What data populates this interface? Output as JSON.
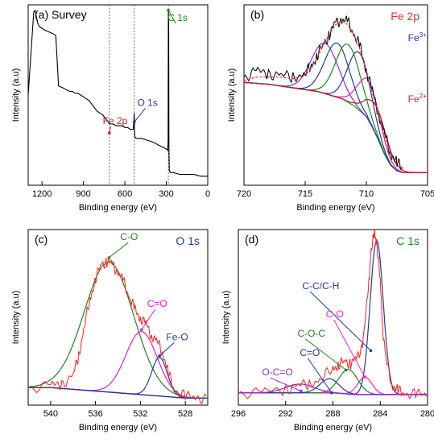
{
  "figure": {
    "panels": [
      {
        "label": "(a) Survey",
        "xlabel": "Binding energy (eV)",
        "ylabel": "Intensity (a.u)",
        "annotations": [
          {
            "text": "C 1s",
            "color": "#1a8a1a",
            "x": 290,
            "y": 0.91,
            "arrow_to": [
              285,
              0.97
            ]
          },
          {
            "text": "O 1s",
            "color": "#1f3d99",
            "x": 510,
            "y": 0.44,
            "arrow_to": [
              532,
              0.35
            ]
          },
          {
            "text": "Fe 2p",
            "color": "#cc2222",
            "x": 760,
            "y": 0.34,
            "arrow_to": [
              712,
              0.29
            ]
          }
        ]
      },
      {
        "label": "(b)",
        "title": "Fe 2p",
        "title_color": "#e0342f",
        "xlabel": "Binding energy (eV)",
        "ylabel": "Intensity (a.u)",
        "annotations": [
          {
            "text": "Fe",
            "sup": "3+",
            "color": "#1f3d99",
            "x": 706.6,
            "y": 0.8
          },
          {
            "text": "Fe",
            "sup": "2+",
            "color": "#cc2222",
            "x": 706.6,
            "y": 0.46
          }
        ]
      },
      {
        "label": "(c)",
        "title": "O 1s",
        "title_color": "#1f3d99",
        "xlabel": "Binding energy (eV)",
        "ylabel": "Intensity (a.u)",
        "annotations": [
          {
            "text": "C-O",
            "color": "#1a8a1a",
            "x": 533.8,
            "y": 0.94,
            "arrow_to": [
              534.8,
              0.84
            ]
          },
          {
            "text": "C=O",
            "color": "#e020c8",
            "x": 531.4,
            "y": 0.56,
            "arrow_to": [
              531.9,
              0.43
            ]
          },
          {
            "text": "Fe-O",
            "color": "#1f3d99",
            "x": 529.7,
            "y": 0.37,
            "arrow_to": [
              530.3,
              0.28
            ]
          }
        ]
      },
      {
        "label": "(d)",
        "title": "C 1s",
        "title_color": "#1a8a1a",
        "xlabel": "Binding energy (eV)",
        "ylabel": "Intensity (a.u)",
        "annotations": [
          {
            "text": "C-C/C-H",
            "color": "#1f3d99",
            "x": 290.6,
            "y": 0.66,
            "arrow_to": [
              284.8,
              0.31
            ]
          },
          {
            "text": "C-O",
            "color": "#ff22dd",
            "x": 288.6,
            "y": 0.5,
            "arrow_to": [
              285.3,
              0.16
            ]
          },
          {
            "text": "C-O-C",
            "color": "#1a8a1a",
            "x": 291.0,
            "y": 0.39,
            "arrow_to": [
              286.9,
              0.2
            ]
          },
          {
            "text": "C=O",
            "color": "#1f3d99",
            "x": 290.8,
            "y": 0.28,
            "arrow_to": [
              288.1,
              0.07
            ]
          },
          {
            "text": "O-C=O",
            "color": "#8a2ad6",
            "x": 294.0,
            "y": 0.17,
            "arrow_to": [
              290.7,
              0.08
            ]
          }
        ]
      }
    ]
  },
  "chart_data": [
    {
      "type": "line",
      "title": "(a) Survey",
      "xlabel": "Binding energy (eV)",
      "ylabel": "Intensity (a.u)",
      "xlim": [
        1300,
        0
      ],
      "ylim": [
        0,
        1
      ],
      "xticks": [
        1200,
        900,
        600,
        300,
        0
      ],
      "dashed_vlines": [
        712,
        532,
        285
      ],
      "series": [
        {
          "color": "#000000",
          "x": [
            1300,
            1260,
            1250,
            1240,
            1232,
            1220,
            1200,
            1180,
            1150,
            1120,
            1100,
            1080,
            1050,
            1000,
            980,
            960,
            940,
            920,
            900,
            880,
            860,
            840,
            820,
            800,
            780,
            760,
            740,
            720,
            712,
            705,
            690,
            660,
            620,
            600,
            580,
            560,
            545,
            540,
            535,
            532,
            530,
            528,
            520,
            480,
            440,
            400,
            350,
            320,
            300,
            295,
            290,
            287,
            285,
            283,
            281,
            278,
            270,
            250,
            200,
            150,
            100,
            50,
            20,
            0
          ],
          "y": [
            0.5,
            0.96,
            0.97,
            0.93,
            0.9,
            0.88,
            0.87,
            0.86,
            0.85,
            0.84,
            0.83,
            0.55,
            0.54,
            0.52,
            0.52,
            0.51,
            0.51,
            0.5,
            0.49,
            0.48,
            0.47,
            0.45,
            0.43,
            0.41,
            0.4,
            0.39,
            0.37,
            0.35,
            0.34,
            0.34,
            0.34,
            0.33,
            0.33,
            0.32,
            0.32,
            0.31,
            0.31,
            0.31,
            0.35,
            0.4,
            0.3,
            0.27,
            0.26,
            0.26,
            0.25,
            0.24,
            0.22,
            0.21,
            0.2,
            0.2,
            0.19,
            0.25,
            0.97,
            0.88,
            0.2,
            0.08,
            0.07,
            0.07,
            0.06,
            0.06,
            0.06,
            0.05,
            0.05,
            0.05
          ]
        }
      ]
    },
    {
      "type": "line",
      "title": "Fe 2p",
      "xlabel": "Binding energy (eV)",
      "ylabel": "Intensity (a.u)",
      "xlim": [
        720,
        705
      ],
      "ylim": [
        0,
        1
      ],
      "xticks": [
        720,
        715,
        710,
        705
      ],
      "raw": {
        "color": "#000000",
        "x": [
          720,
          719,
          718,
          717,
          716,
          715,
          714.5,
          714,
          713.5,
          713,
          712.5,
          712,
          711.5,
          711,
          710.5,
          710,
          709.5,
          709,
          708.5,
          708,
          707.5,
          707
        ],
        "y": [
          0.6,
          0.63,
          0.62,
          0.61,
          0.6,
          0.62,
          0.66,
          0.72,
          0.78,
          0.84,
          0.9,
          0.92,
          0.9,
          0.84,
          0.76,
          0.64,
          0.52,
          0.4,
          0.28,
          0.18,
          0.12,
          0.1
        ]
      },
      "fit": {
        "color": "#ff3b30",
        "x": [
          720,
          719,
          718,
          717,
          716,
          715,
          714.5,
          714,
          713.5,
          713,
          712.5,
          712,
          711.5,
          711,
          710.5,
          710,
          709.5,
          709,
          708.5,
          708,
          707.5,
          707
        ],
        "y": [
          0.58,
          0.6,
          0.6,
          0.6,
          0.59,
          0.61,
          0.65,
          0.71,
          0.78,
          0.84,
          0.89,
          0.91,
          0.89,
          0.83,
          0.75,
          0.63,
          0.51,
          0.39,
          0.27,
          0.17,
          0.11,
          0.09
        ]
      },
      "background": {
        "color": "#1bb31b",
        "x": [
          720,
          718,
          716,
          714,
          712,
          711,
          710,
          709.5,
          709,
          708.5,
          708,
          707.5,
          707
        ],
        "y": [
          0.57,
          0.56,
          0.54,
          0.52,
          0.48,
          0.44,
          0.38,
          0.32,
          0.25,
          0.17,
          0.11,
          0.08,
          0.07
        ]
      },
      "components": [
        {
          "name": "Fe3+ a",
          "color": "#8a2ad6",
          "center": 713.4,
          "height": 0.28,
          "width": 1.1
        },
        {
          "name": "Fe3+ b",
          "color": "#1f3d99",
          "center": 712.4,
          "height": 0.3,
          "width": 1.0
        },
        {
          "name": "Fe3+ c",
          "color": "#1a8a1a",
          "center": 711.5,
          "height": 0.32,
          "width": 1.0
        },
        {
          "name": "Fe3+ d",
          "color": "#1f3d99",
          "center": 710.6,
          "height": 0.32,
          "width": 0.9
        },
        {
          "name": "Fe2+ a",
          "color": "#e020c8",
          "center": 709.8,
          "height": 0.22,
          "width": 0.9
        },
        {
          "name": "Fe2+ b",
          "color": "#b02020",
          "center": 709.1,
          "height": 0.16,
          "width": 0.9
        }
      ]
    },
    {
      "type": "line",
      "title": "O 1s",
      "xlabel": "Binding energy (eV)",
      "ylabel": "Intensity (a.u)",
      "xlim": [
        542,
        526
      ],
      "ylim": [
        0,
        1
      ],
      "xticks": [
        540,
        536,
        532,
        528
      ],
      "raw": {
        "color": "#ff2020",
        "x": [
          542,
          540,
          539,
          538,
          537.5,
          537,
          536.5,
          536,
          535.5,
          535,
          534.5,
          534,
          533.5,
          533,
          532.5,
          532,
          531.5,
          531,
          530.5,
          530,
          529.5,
          529,
          528,
          527,
          526
        ],
        "y": [
          0.1,
          0.11,
          0.12,
          0.17,
          0.28,
          0.45,
          0.6,
          0.72,
          0.8,
          0.82,
          0.8,
          0.76,
          0.7,
          0.62,
          0.54,
          0.5,
          0.46,
          0.4,
          0.36,
          0.3,
          0.18,
          0.09,
          0.05,
          0.04,
          0.04
        ]
      },
      "background": {
        "color": "#2a2a7a",
        "x": [
          542,
          540,
          538,
          536,
          534,
          532,
          530,
          528,
          526
        ],
        "y": [
          0.1,
          0.1,
          0.09,
          0.08,
          0.07,
          0.06,
          0.05,
          0.04,
          0.04
        ]
      },
      "components": [
        {
          "name": "C-O",
          "color": "#1a8a1a",
          "center": 534.8,
          "height": 0.74,
          "width": 2.2
        },
        {
          "name": "C=O",
          "color": "#e020c8",
          "center": 531.9,
          "height": 0.36,
          "width": 1.4
        },
        {
          "name": "Fe-O",
          "color": "#1f3d99",
          "center": 530.3,
          "height": 0.22,
          "width": 0.7
        }
      ]
    },
    {
      "type": "line",
      "title": "C 1s",
      "xlabel": "Binding energy (eV)",
      "ylabel": "Intensity (a.u)",
      "xlim": [
        296,
        280
      ],
      "ylim": [
        0,
        1
      ],
      "xticks": [
        296,
        292,
        288,
        284,
        280
      ],
      "raw": {
        "color": "#ff2020",
        "x": [
          296,
          294,
          292,
          291,
          290,
          289,
          288,
          287.5,
          287,
          286.5,
          286,
          285.5,
          285,
          284.8,
          284.5,
          284.3,
          284,
          283.8,
          283.5,
          283,
          282.5,
          282,
          281,
          280
        ],
        "y": [
          0.07,
          0.07,
          0.09,
          0.11,
          0.12,
          0.15,
          0.21,
          0.23,
          0.25,
          0.24,
          0.26,
          0.35,
          0.65,
          0.88,
          0.97,
          0.94,
          0.7,
          0.45,
          0.25,
          0.12,
          0.08,
          0.07,
          0.06,
          0.06
        ]
      },
      "background": {
        "color": "#6a2a8a",
        "x": [
          296,
          292,
          290,
          288,
          286,
          285,
          284,
          282,
          280
        ],
        "y": [
          0.07,
          0.07,
          0.07,
          0.07,
          0.06,
          0.06,
          0.06,
          0.06,
          0.06
        ]
      },
      "components": [
        {
          "name": "C-C/C-H",
          "color": "#1f3d99",
          "center": 284.3,
          "height": 0.88,
          "width": 0.55
        },
        {
          "name": "C-O",
          "color": "#ff22dd",
          "center": 285.3,
          "height": 0.1,
          "width": 0.6
        },
        {
          "name": "C-O-C",
          "color": "#1a8a1a",
          "center": 286.7,
          "height": 0.14,
          "width": 0.8
        },
        {
          "name": "C=O",
          "color": "#1f3d99",
          "center": 288.3,
          "height": 0.08,
          "width": 0.8
        },
        {
          "name": "O-C=O",
          "color": "#8a2ad6",
          "center": 290.8,
          "height": 0.05,
          "width": 1.2
        }
      ]
    }
  ]
}
